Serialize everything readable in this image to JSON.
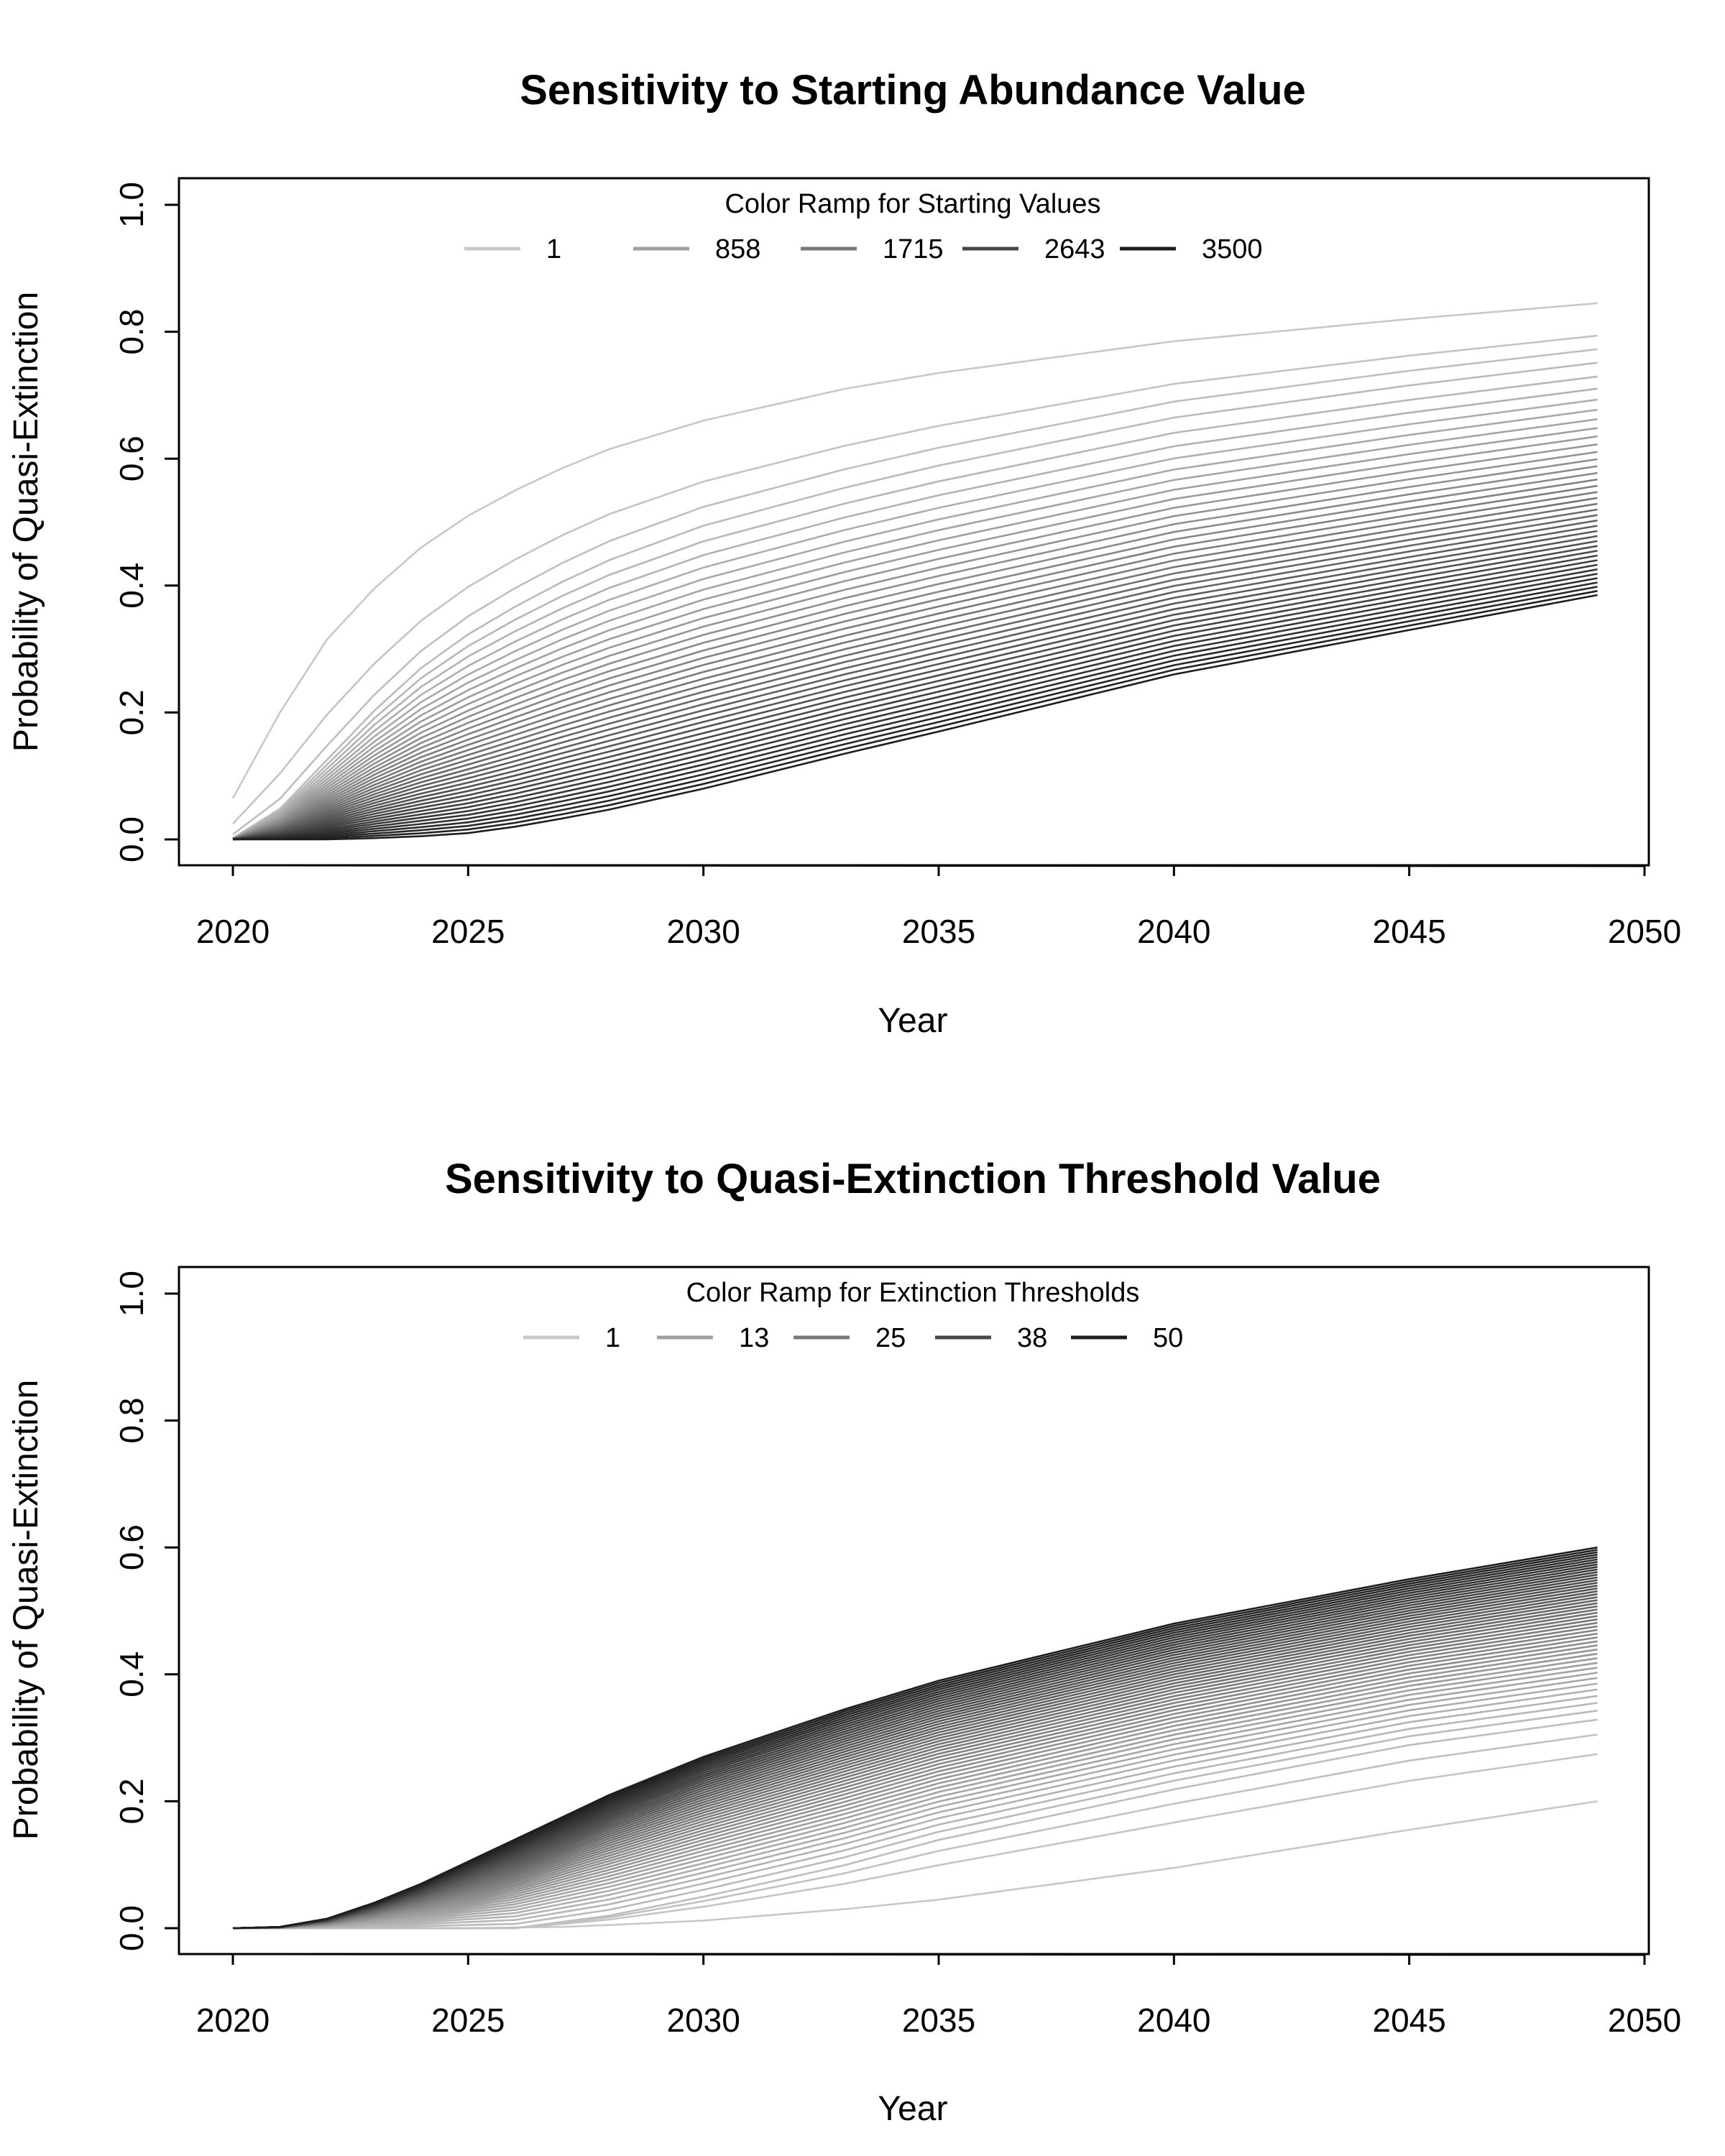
{
  "chart_data": [
    {
      "type": "line",
      "title": "Sensitivity to Starting Abundance Value",
      "xlabel": "Year",
      "ylabel": "Probability of Quasi-Extinction",
      "xlim": [
        2020,
        2050
      ],
      "ylim": [
        0.0,
        1.0
      ],
      "x_ticks": [
        "2020",
        "2025",
        "2030",
        "2035",
        "2040",
        "2045",
        "2050"
      ],
      "y_ticks": [
        "0.0",
        "0.2",
        "0.4",
        "0.6",
        "0.8",
        "1.0"
      ],
      "x_start": 2020,
      "x_end": 2049,
      "grid": false,
      "legend": {
        "title": "Color Ramp for Starting Values",
        "placement": "top",
        "entries": [
          "1",
          "858",
          "1715",
          "2643",
          "3500"
        ],
        "colors": [
          "#c8c8c8",
          "#a0a0a0",
          "#787878",
          "#474747",
          "#1e1e1e"
        ]
      },
      "color_ramp": [
        "#c8c8c8",
        "#1e1e1e"
      ],
      "series_count": 40,
      "series_curves": [
        {
          "name": "1",
          "final": 0.845,
          "points": [
            [
              2020,
              0.065
            ],
            [
              2021,
              0.2
            ],
            [
              2022,
              0.315
            ],
            [
              2023,
              0.395
            ],
            [
              2024,
              0.46
            ],
            [
              2025,
              0.51
            ],
            [
              2026,
              0.55
            ],
            [
              2027,
              0.585
            ],
            [
              2028,
              0.615
            ],
            [
              2030,
              0.66
            ],
            [
              2033,
              0.71
            ],
            [
              2035,
              0.735
            ],
            [
              2040,
              0.785
            ],
            [
              2045,
              0.82
            ],
            [
              2049,
              0.845
            ]
          ]
        },
        {
          "name": "858",
          "final": 0.765,
          "points": [
            [
              2020,
              0.002
            ],
            [
              2021,
              0.05
            ],
            [
              2022,
              0.13
            ],
            [
              2023,
              0.21
            ],
            [
              2024,
              0.28
            ],
            [
              2025,
              0.335
            ],
            [
              2026,
              0.38
            ],
            [
              2027,
              0.42
            ],
            [
              2028,
              0.455
            ],
            [
              2030,
              0.51
            ],
            [
              2033,
              0.57
            ],
            [
              2035,
              0.605
            ],
            [
              2040,
              0.68
            ],
            [
              2045,
              0.73
            ],
            [
              2049,
              0.765
            ]
          ]
        },
        {
          "name": "3500",
          "final": 0.385,
          "points": [
            [
              2020,
              0.0
            ],
            [
              2021,
              0.0
            ],
            [
              2022,
              0.0
            ],
            [
              2023,
              0.002
            ],
            [
              2024,
              0.005
            ],
            [
              2025,
              0.01
            ],
            [
              2026,
              0.02
            ],
            [
              2027,
              0.033
            ],
            [
              2028,
              0.047
            ],
            [
              2030,
              0.08
            ],
            [
              2033,
              0.135
            ],
            [
              2035,
              0.17
            ],
            [
              2040,
              0.26
            ],
            [
              2045,
              0.33
            ],
            [
              2049,
              0.385
            ]
          ]
        }
      ]
    },
    {
      "type": "line",
      "title": "Sensitivity to Quasi-Extinction Threshold Value",
      "xlabel": "Year",
      "ylabel": "Probability of Quasi-Extinction",
      "xlim": [
        2020,
        2050
      ],
      "ylim": [
        0.0,
        1.0
      ],
      "x_ticks": [
        "2020",
        "2025",
        "2030",
        "2035",
        "2040",
        "2045",
        "2050"
      ],
      "y_ticks": [
        "0.0",
        "0.2",
        "0.4",
        "0.6",
        "0.8",
        "1.0"
      ],
      "x_start": 2020,
      "x_end": 2049,
      "grid": false,
      "legend": {
        "title": "Color Ramp for Extinction Thresholds",
        "placement": "top",
        "entries": [
          "1",
          "13",
          "25",
          "38",
          "50"
        ],
        "colors": [
          "#c8c8c8",
          "#a0a0a0",
          "#787878",
          "#474747",
          "#1e1e1e"
        ]
      },
      "color_ramp": [
        "#c8c8c8",
        "#1e1e1e"
      ],
      "series_count": 50,
      "series_curves": [
        {
          "name": "1",
          "final": 0.2,
          "points": [
            [
              2020,
              0.0
            ],
            [
              2023,
              0.0
            ],
            [
              2025,
              0.0
            ],
            [
              2027,
              0.002
            ],
            [
              2028,
              0.005
            ],
            [
              2030,
              0.012
            ],
            [
              2033,
              0.03
            ],
            [
              2035,
              0.045
            ],
            [
              2040,
              0.095
            ],
            [
              2045,
              0.155
            ],
            [
              2049,
              0.2
            ]
          ]
        },
        {
          "name": "13",
          "final": 0.33,
          "points": [
            [
              2020,
              0.0
            ],
            [
              2024,
              0.0
            ],
            [
              2026,
              0.0
            ],
            [
              2028,
              0.02
            ],
            [
              2030,
              0.05
            ],
            [
              2033,
              0.1
            ],
            [
              2035,
              0.14
            ],
            [
              2040,
              0.22
            ],
            [
              2045,
              0.29
            ],
            [
              2049,
              0.33
            ]
          ]
        },
        {
          "name": "50",
          "final": 0.6,
          "points": [
            [
              2020,
              0.0
            ],
            [
              2021,
              0.002
            ],
            [
              2022,
              0.015
            ],
            [
              2023,
              0.04
            ],
            [
              2024,
              0.07
            ],
            [
              2025,
              0.105
            ],
            [
              2026,
              0.14
            ],
            [
              2027,
              0.175
            ],
            [
              2028,
              0.21
            ],
            [
              2030,
              0.27
            ],
            [
              2033,
              0.345
            ],
            [
              2035,
              0.39
            ],
            [
              2040,
              0.48
            ],
            [
              2045,
              0.55
            ],
            [
              2049,
              0.6
            ]
          ]
        }
      ]
    }
  ]
}
